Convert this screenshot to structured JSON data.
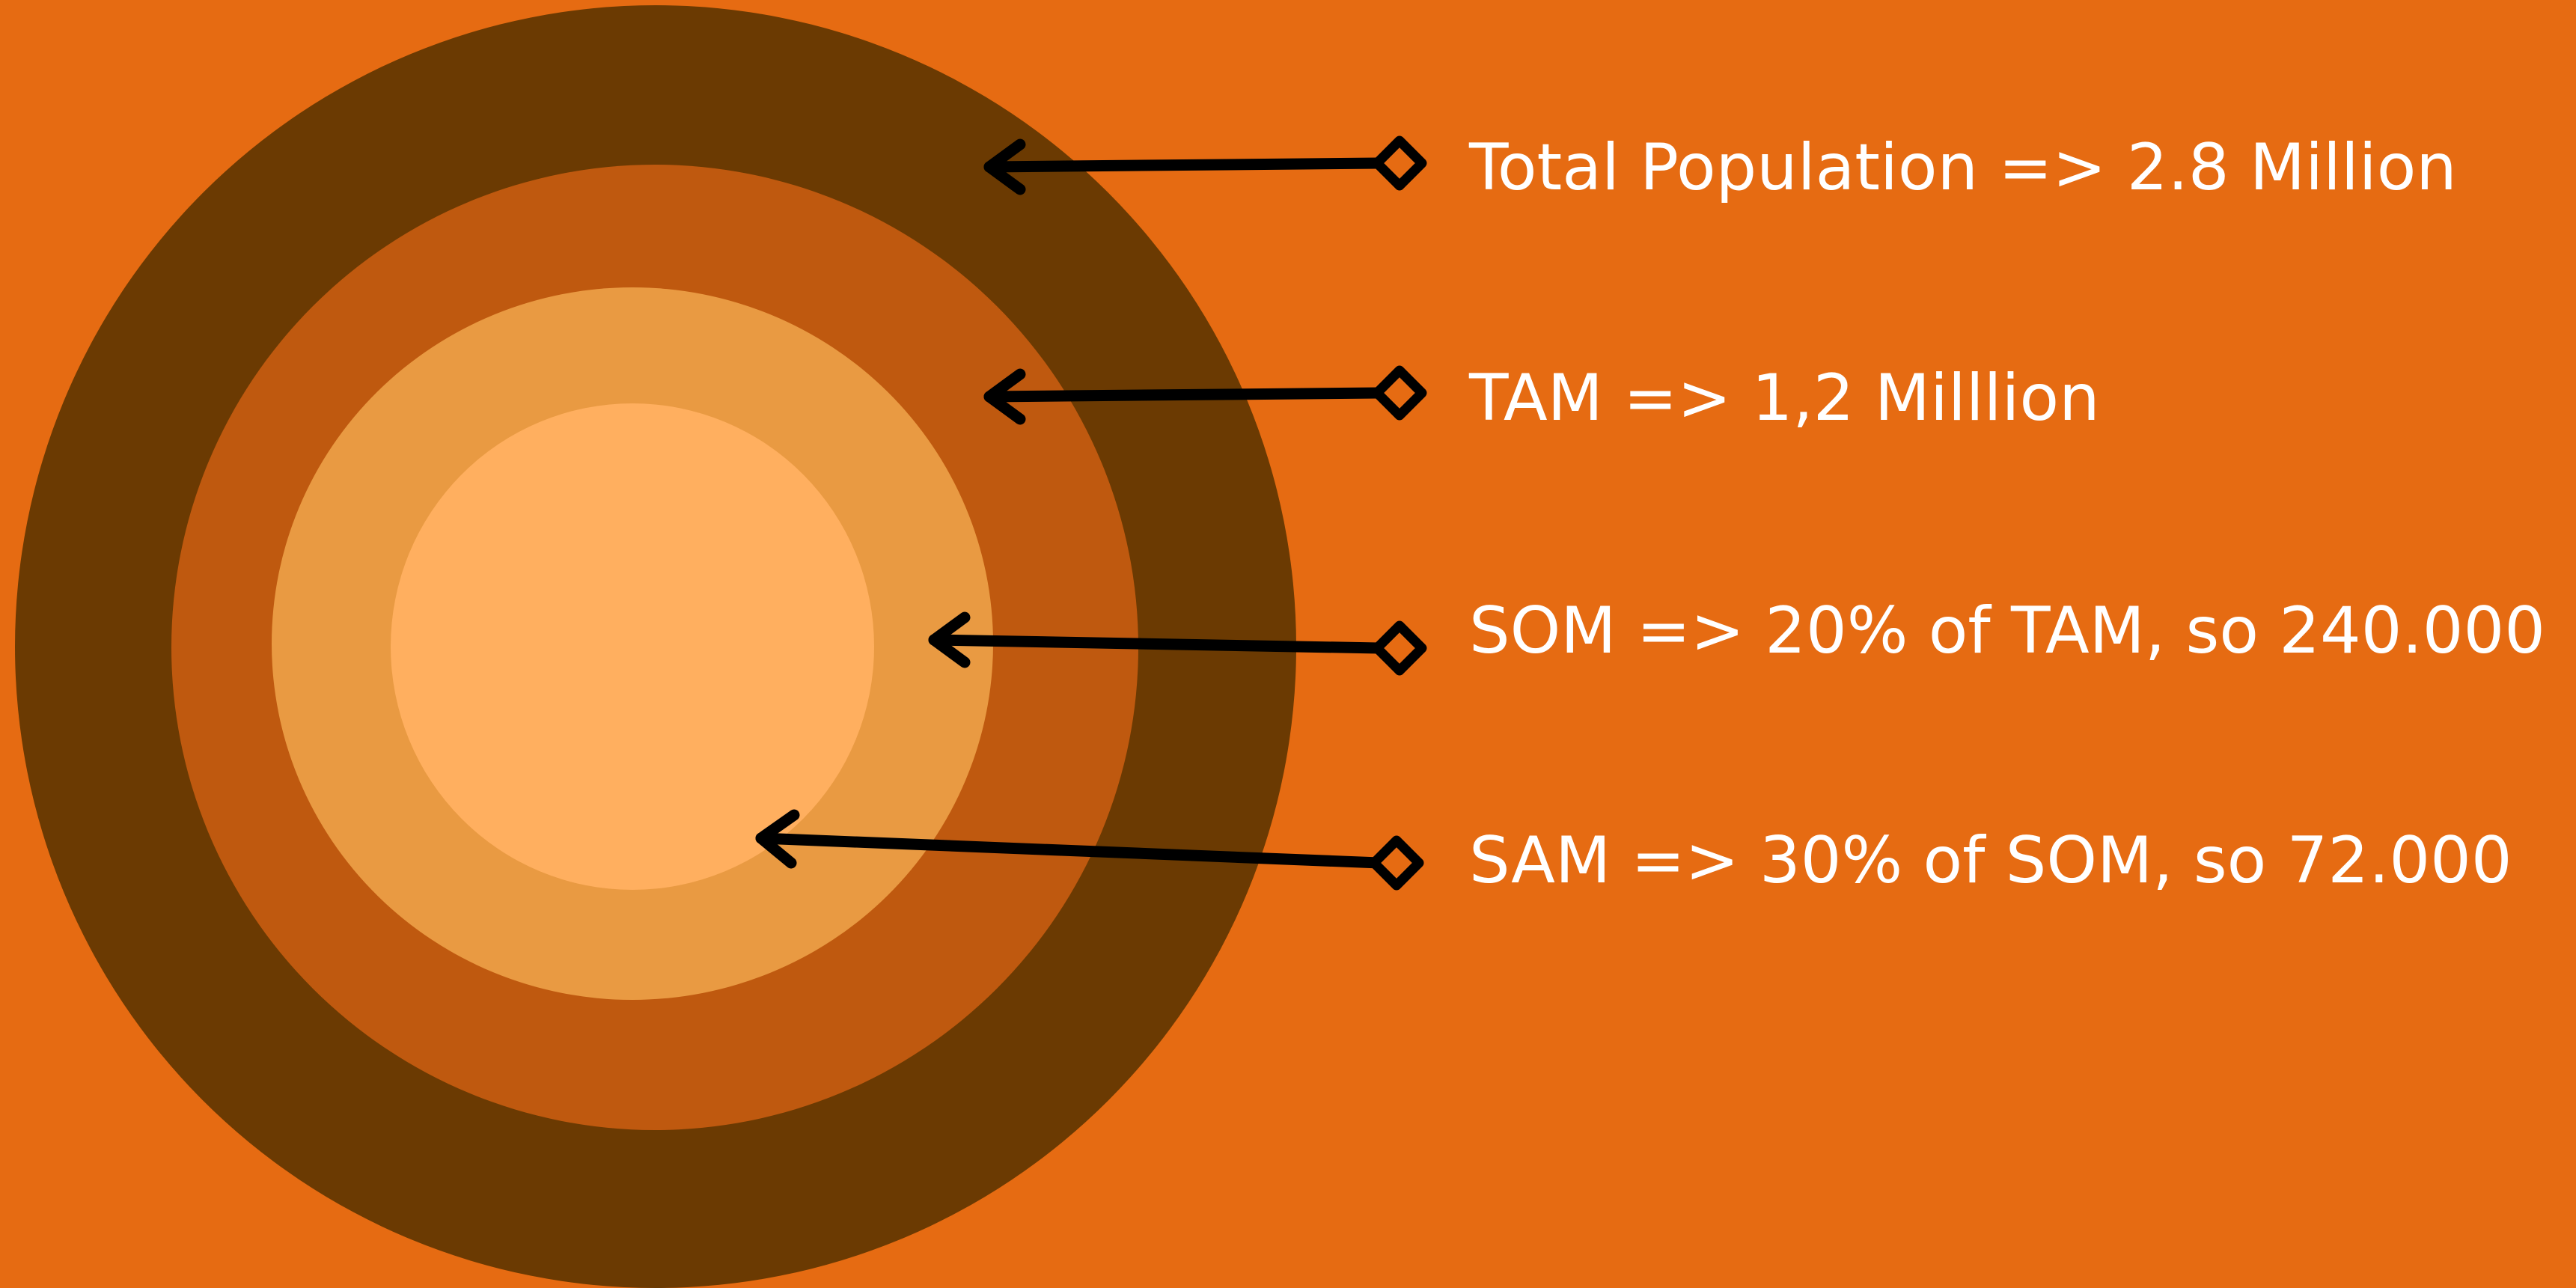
{
  "background_color": "#e66b12",
  "rings": [
    {
      "name": "total-population",
      "color": "#6b3a02"
    },
    {
      "name": "tam",
      "color": "#bf590f"
    },
    {
      "name": "sam",
      "color": "#e99a42"
    },
    {
      "name": "som",
      "color": "#ffaf5f"
    }
  ],
  "labels": [
    {
      "text": "Total Population => 2.8 Million"
    },
    {
      "text": "TAM => 1,2 Milllion"
    },
    {
      "text": "SOM => 20% of TAM, so 240.000"
    },
    {
      "text": "SAM => 30% of SOM, so 72.000"
    }
  ]
}
